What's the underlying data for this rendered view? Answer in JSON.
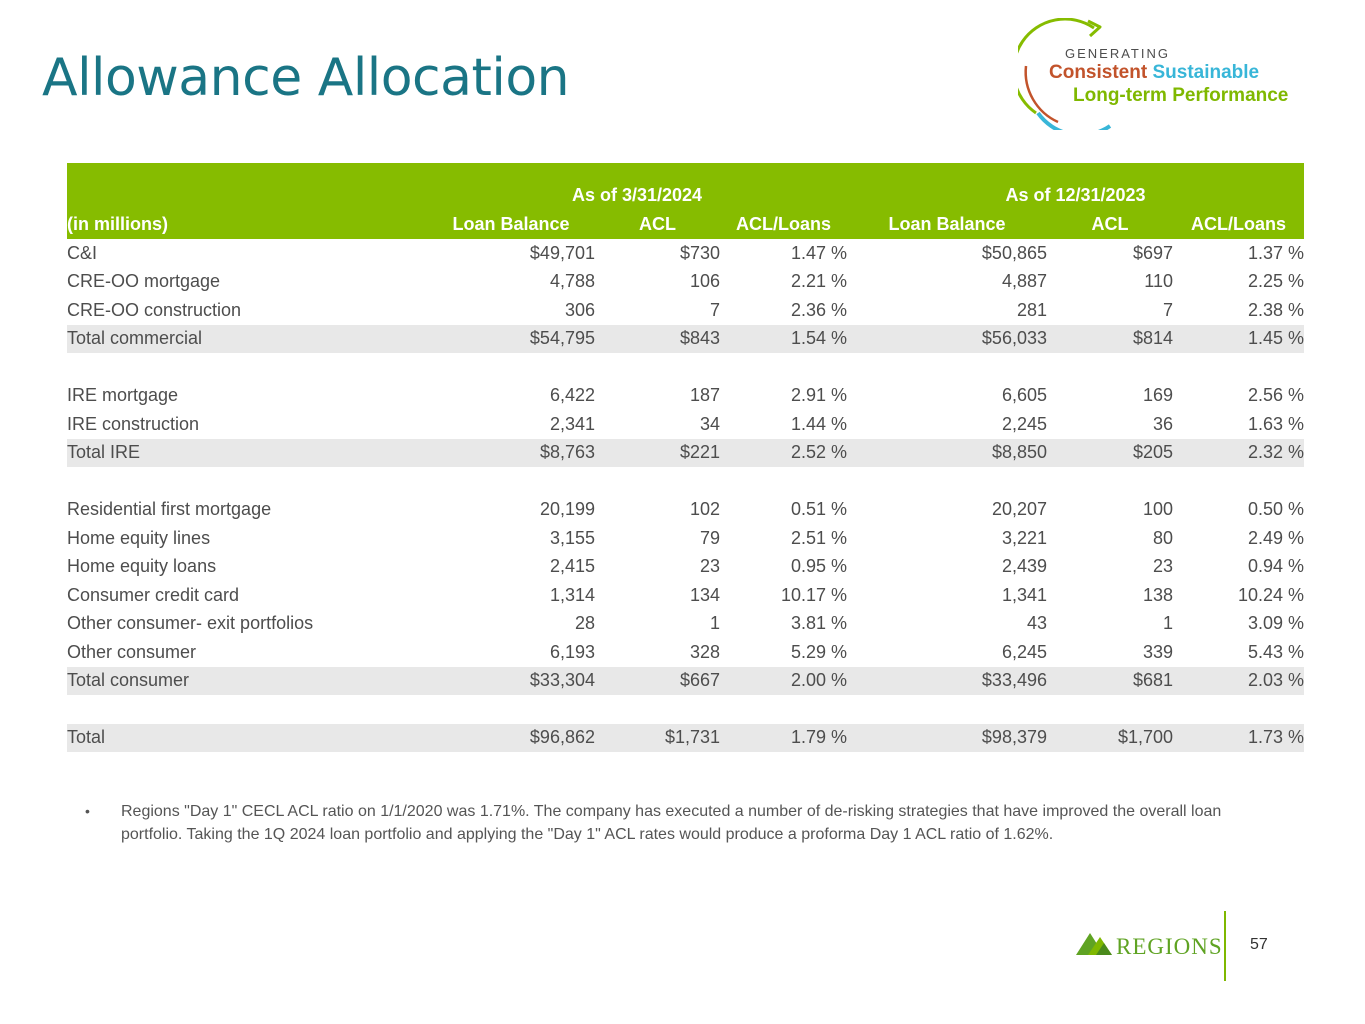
{
  "title": "Allowance Allocation",
  "logo": {
    "line1": "GENERATING",
    "line2a": "Consistent",
    "line2b": "Sustainable",
    "line3": "Long-term Performance"
  },
  "table": {
    "period1": "As of 3/31/2024",
    "period2": "As of 12/31/2023",
    "unit_label": "(in millions)",
    "columns": [
      "Loan Balance",
      "ACL",
      "ACL/Loans",
      "Loan Balance",
      "ACL",
      "ACL/Loans"
    ],
    "rows": [
      {
        "label": "C&I",
        "v": [
          "$49,701",
          "$730",
          "1.47 %",
          "$50,865",
          "$697",
          "1.37 %"
        ]
      },
      {
        "label": "CRE-OO mortgage",
        "v": [
          "4,788",
          "106",
          "2.21 %",
          "4,887",
          "110",
          "2.25 %"
        ]
      },
      {
        "label": "CRE-OO construction",
        "v": [
          "306",
          "7",
          "2.36 %",
          "281",
          "7",
          "2.38 %"
        ]
      },
      {
        "label": "Total commercial",
        "v": [
          "$54,795",
          "$843",
          "1.54 %",
          "$56,033",
          "$814",
          "1.45 %"
        ]
      },
      {
        "label": "IRE mortgage",
        "v": [
          "6,422",
          "187",
          "2.91 %",
          "6,605",
          "169",
          "2.56 %"
        ]
      },
      {
        "label": "IRE construction",
        "v": [
          "2,341",
          "34",
          "1.44 %",
          "2,245",
          "36",
          "1.63 %"
        ]
      },
      {
        "label": "Total IRE",
        "v": [
          "$8,763",
          "$221",
          "2.52 %",
          "$8,850",
          "$205",
          "2.32 %"
        ]
      },
      {
        "label": "Residential first mortgage",
        "v": [
          "20,199",
          "102",
          "0.51 %",
          "20,207",
          "100",
          "0.50 %"
        ]
      },
      {
        "label": "Home equity lines",
        "v": [
          "3,155",
          "79",
          "2.51 %",
          "3,221",
          "80",
          "2.49 %"
        ]
      },
      {
        "label": "Home equity loans",
        "v": [
          "2,415",
          "23",
          "0.95 %",
          "2,439",
          "23",
          "0.94 %"
        ]
      },
      {
        "label": "Consumer credit card",
        "v": [
          "1,314",
          "134",
          "10.17 %",
          "1,341",
          "138",
          "10.24 %"
        ]
      },
      {
        "label": "Other consumer- exit portfolios",
        "v": [
          "28",
          "1",
          "3.81 %",
          "43",
          "1",
          "3.09 %"
        ]
      },
      {
        "label": "Other consumer",
        "v": [
          "6,193",
          "328",
          "5.29 %",
          "6,245",
          "339",
          "5.43 %"
        ]
      },
      {
        "label": "Total consumer",
        "v": [
          "$33,304",
          "$667",
          "2.00 %",
          "$33,496",
          "$681",
          "2.03 %"
        ]
      },
      {
        "label": "Total",
        "v": [
          "$96,862",
          "$1,731",
          "1.79 %",
          "$98,379",
          "$1,700",
          "1.73 %"
        ]
      }
    ]
  },
  "note": {
    "bullet": "•",
    "text": "Regions \"Day 1\" CECL ACL ratio on 1/1/2020 was 1.71%. The company has executed a number of de-risking strategies that have improved the overall loan portfolio. Taking the 1Q  2024 loan portfolio and applying the \"Day 1\" ACL rates would produce a proforma Day 1 ACL ratio of 1.62%."
  },
  "footer": {
    "brand": "REGIONS",
    "page_number": "57",
    "brand_color": "#5fa323"
  },
  "colors": {
    "title": "#1a7585",
    "header_bg": "#86bc00",
    "total_row_bg": "#e8e8e8"
  }
}
